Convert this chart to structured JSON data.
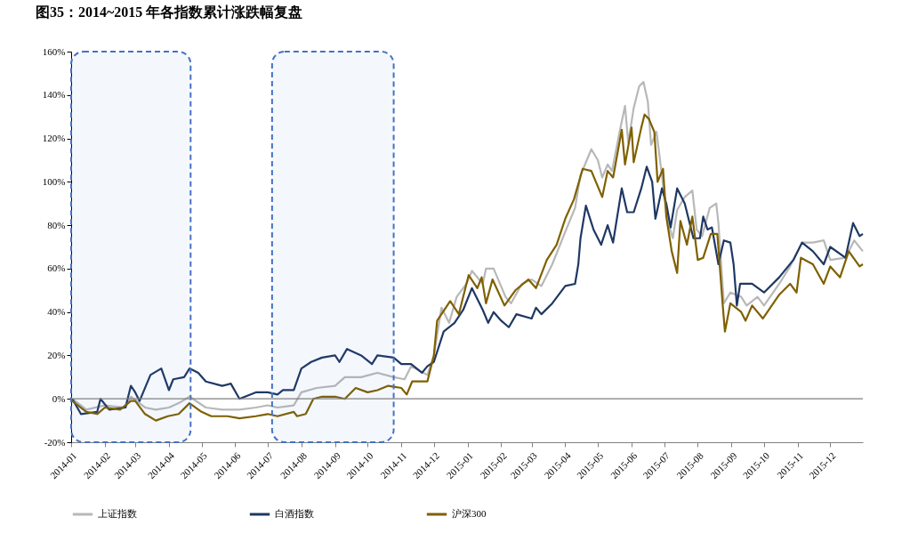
{
  "chart_data": {
    "type": "line",
    "title": "图35：2014~2015 年各指数累计涨跌幅复盘",
    "xlim": [
      "2014-01-01",
      "2015-12-31"
    ],
    "xticks": [
      "2014-01",
      "2014-02",
      "2014-03",
      "2014-04",
      "2014-05",
      "2014-06",
      "2014-07",
      "2014-08",
      "2014-09",
      "2014-10",
      "2014-11",
      "2014-12",
      "2015-01",
      "2015-02",
      "2015-03",
      "2015-04",
      "2015-05",
      "2015-06",
      "2015-07",
      "2015-08",
      "2015-09",
      "2015-10",
      "2015-11",
      "2015-12"
    ],
    "ylim": [
      -20,
      160
    ],
    "yticks": [
      {
        "value": -20,
        "label": "-20%"
      },
      {
        "value": 0,
        "label": "0%"
      },
      {
        "value": 20,
        "label": "20%"
      },
      {
        "value": 40,
        "label": "40%"
      },
      {
        "value": 60,
        "label": "60%"
      },
      {
        "value": 80,
        "label": "80%"
      },
      {
        "value": 100,
        "label": "100%"
      },
      {
        "value": 120,
        "label": "120%"
      },
      {
        "value": 140,
        "label": "140%"
      },
      {
        "value": 160,
        "label": "160%"
      }
    ],
    "grid": false,
    "legend": "bottom",
    "line_style": "solid",
    "ref_lines": [
      {
        "axis": "y",
        "value": 0,
        "color": "#808080"
      }
    ],
    "bands": [
      {
        "axis": "x",
        "from": "2014-01-01",
        "to": "2014-04-21",
        "color": "#4472c4"
      },
      {
        "axis": "x",
        "from": "2014-07-05",
        "to": "2014-10-25",
        "color": "#4472c4"
      }
    ],
    "series": [
      {
        "name": "上证指数",
        "color": "#b8b8b8",
        "x": [
          "2014-01-02",
          "2014-01-15",
          "2014-02-01",
          "2014-02-20",
          "2014-02-25",
          "2014-03-10",
          "2014-03-20",
          "2014-04-01",
          "2014-04-10",
          "2014-04-20",
          "2014-05-05",
          "2014-05-20",
          "2014-06-05",
          "2014-06-20",
          "2014-07-01",
          "2014-07-10",
          "2014-07-25",
          "2014-08-01",
          "2014-08-15",
          "2014-09-01",
          "2014-09-10",
          "2014-09-25",
          "2014-10-10",
          "2014-10-25",
          "2014-11-04",
          "2014-11-10",
          "2014-11-25",
          "2014-12-01",
          "2014-12-08",
          "2014-12-15",
          "2014-12-22",
          "2014-12-31",
          "2015-01-05",
          "2015-01-15",
          "2015-01-18",
          "2015-01-25",
          "2015-02-05",
          "2015-02-10",
          "2015-02-20",
          "2015-03-01",
          "2015-03-10",
          "2015-03-20",
          "2015-04-01",
          "2015-04-10",
          "2015-04-15",
          "2015-04-25",
          "2015-05-01",
          "2015-05-05",
          "2015-05-10",
          "2015-05-14",
          "2015-05-21",
          "2015-05-26",
          "2015-05-29",
          "2015-06-03",
          "2015-06-08",
          "2015-06-12",
          "2015-06-16",
          "2015-06-19",
          "2015-06-24",
          "2015-06-29",
          "2015-07-02",
          "2015-07-06",
          "2015-07-09",
          "2015-07-13",
          "2015-07-20",
          "2015-07-27",
          "2015-07-31",
          "2015-08-05",
          "2015-08-12",
          "2015-08-18",
          "2015-08-20",
          "2015-08-25",
          "2015-08-31",
          "2015-09-10",
          "2015-09-15",
          "2015-09-25",
          "2015-10-01",
          "2015-10-15",
          "2015-10-25",
          "2015-11-05",
          "2015-11-15",
          "2015-11-25",
          "2015-12-01",
          "2015-12-15",
          "2015-12-23",
          "2015-12-31"
        ],
        "values": [
          0,
          -5,
          -3,
          -4,
          1,
          -4,
          -5,
          -4,
          -2,
          1,
          -4,
          -5,
          -5,
          -4,
          -3,
          -4,
          -3,
          3,
          5,
          6,
          10,
          10,
          12,
          10,
          9,
          15,
          11,
          20,
          42,
          35,
          47,
          53,
          59,
          53,
          60,
          60,
          47,
          44,
          53,
          55,
          52,
          62,
          77,
          88,
          103,
          115,
          110,
          102,
          108,
          105,
          123,
          135,
          118,
          134,
          144,
          146,
          137,
          117,
          123,
          103,
          90,
          79,
          74,
          87,
          93,
          96,
          78,
          75,
          88,
          90,
          81,
          44,
          49,
          47,
          43,
          47,
          43,
          53,
          61,
          72,
          72,
          73,
          64,
          65,
          73,
          68
        ]
      },
      {
        "name": "白酒指数",
        "color": "#1f3864",
        "x": [
          "2014-01-02",
          "2014-01-10",
          "2014-01-25",
          "2014-01-28",
          "2014-02-05",
          "2014-02-20",
          "2014-02-25",
          "2014-03-01",
          "2014-03-05",
          "2014-03-15",
          "2014-03-25",
          "2014-04-01",
          "2014-04-05",
          "2014-04-15",
          "2014-04-20",
          "2014-04-28",
          "2014-05-05",
          "2014-05-20",
          "2014-05-28",
          "2014-06-05",
          "2014-06-20",
          "2014-07-01",
          "2014-07-10",
          "2014-07-15",
          "2014-07-25",
          "2014-08-01",
          "2014-08-10",
          "2014-08-20",
          "2014-09-01",
          "2014-09-05",
          "2014-09-12",
          "2014-09-25",
          "2014-10-05",
          "2014-10-10",
          "2014-10-25",
          "2014-11-01",
          "2014-11-10",
          "2014-11-20",
          "2014-11-25",
          "2014-12-01",
          "2014-12-10",
          "2014-12-20",
          "2014-12-28",
          "2015-01-05",
          "2015-01-15",
          "2015-01-20",
          "2015-01-25",
          "2015-02-01",
          "2015-02-08",
          "2015-02-15",
          "2015-03-01",
          "2015-03-05",
          "2015-03-10",
          "2015-03-20",
          "2015-04-01",
          "2015-04-10",
          "2015-04-13",
          "2015-04-15",
          "2015-04-20",
          "2015-04-27",
          "2015-05-04",
          "2015-05-10",
          "2015-05-15",
          "2015-05-23",
          "2015-05-28",
          "2015-06-03",
          "2015-06-10",
          "2015-06-15",
          "2015-06-20",
          "2015-06-23",
          "2015-06-29",
          "2015-07-03",
          "2015-07-07",
          "2015-07-13",
          "2015-07-20",
          "2015-07-28",
          "2015-08-03",
          "2015-08-06",
          "2015-08-10",
          "2015-08-14",
          "2015-08-20",
          "2015-08-25",
          "2015-08-31",
          "2015-09-03",
          "2015-09-06",
          "2015-09-09",
          "2015-09-20",
          "2015-10-01",
          "2015-10-15",
          "2015-10-28",
          "2015-11-05",
          "2015-11-15",
          "2015-11-25",
          "2015-12-01",
          "2015-12-15",
          "2015-12-22",
          "2015-12-28",
          "2015-12-31"
        ],
        "values": [
          0,
          -7,
          -6,
          0,
          -5,
          -4,
          6,
          3,
          -1,
          11,
          14,
          4,
          9,
          10,
          14,
          12,
          8,
          6,
          7,
          0,
          3,
          3,
          2,
          4,
          4,
          14,
          17,
          19,
          20,
          17,
          23,
          20,
          16,
          20,
          19,
          16,
          16,
          12,
          15,
          17,
          31,
          35,
          41,
          51,
          41,
          35,
          40,
          36,
          33,
          39,
          37,
          42,
          39,
          44,
          52,
          53,
          62,
          74,
          89,
          78,
          71,
          80,
          72,
          97,
          86,
          86,
          97,
          107,
          100,
          83,
          97,
          90,
          79,
          97,
          90,
          74,
          74,
          84,
          78,
          79,
          62,
          73,
          72,
          62,
          43,
          53,
          53,
          49,
          56,
          64,
          72,
          68,
          62,
          70,
          65,
          81,
          75,
          76
        ]
      },
      {
        "name": "沪深300",
        "color": "#7f6000",
        "x": [
          "2014-01-02",
          "2014-01-15",
          "2014-01-25",
          "2014-02-01",
          "2014-02-15",
          "2014-02-25",
          "2014-03-01",
          "2014-03-10",
          "2014-03-20",
          "2014-03-31",
          "2014-04-10",
          "2014-04-20",
          "2014-05-01",
          "2014-05-10",
          "2014-05-25",
          "2014-06-05",
          "2014-06-20",
          "2014-07-01",
          "2014-07-10",
          "2014-07-25",
          "2014-07-28",
          "2014-08-05",
          "2014-08-12",
          "2014-08-20",
          "2014-09-01",
          "2014-09-10",
          "2014-09-20",
          "2014-10-01",
          "2014-10-10",
          "2014-10-20",
          "2014-11-01",
          "2014-11-06",
          "2014-11-11",
          "2014-11-25",
          "2014-12-01",
          "2014-12-04",
          "2014-12-16",
          "2014-12-24",
          "2014-12-28",
          "2015-01-02",
          "2015-01-10",
          "2015-01-14",
          "2015-01-18",
          "2015-01-24",
          "2015-02-04",
          "2015-02-14",
          "2015-02-26",
          "2015-03-05",
          "2015-03-15",
          "2015-03-24",
          "2015-04-01",
          "2015-04-09",
          "2015-04-17",
          "2015-04-25",
          "2015-05-05",
          "2015-05-10",
          "2015-05-15",
          "2015-05-23",
          "2015-05-26",
          "2015-06-01",
          "2015-06-03",
          "2015-06-10",
          "2015-06-13",
          "2015-06-17",
          "2015-06-22",
          "2015-06-25",
          "2015-06-30",
          "2015-07-03",
          "2015-07-08",
          "2015-07-13",
          "2015-07-16",
          "2015-07-22",
          "2015-07-27",
          "2015-08-01",
          "2015-08-06",
          "2015-08-13",
          "2015-08-19",
          "2015-08-24",
          "2015-08-26",
          "2015-08-31",
          "2015-09-10",
          "2015-09-14",
          "2015-09-20",
          "2015-09-30",
          "2015-10-15",
          "2015-10-25",
          "2015-10-31",
          "2015-11-04",
          "2015-11-15",
          "2015-11-25",
          "2015-12-01",
          "2015-12-10",
          "2015-12-18",
          "2015-12-28",
          "2015-12-31"
        ],
        "values": [
          -1,
          -6,
          -7,
          -4,
          -5,
          -1,
          -1,
          -7,
          -10,
          -8,
          -7,
          -2,
          -6,
          -8,
          -8,
          -9,
          -8,
          -7,
          -8,
          -6,
          -8,
          -7,
          0,
          1,
          1,
          0,
          5,
          3,
          4,
          6,
          5,
          2,
          8,
          8,
          20,
          36,
          45,
          39,
          47,
          57,
          51,
          56,
          44,
          55,
          43,
          50,
          55,
          51,
          64,
          71,
          83,
          92,
          106,
          105,
          93,
          105,
          102,
          124,
          108,
          125,
          109,
          125,
          131,
          129,
          123,
          100,
          106,
          84,
          68,
          58,
          82,
          71,
          84,
          64,
          65,
          76,
          76,
          43,
          31,
          44,
          40,
          36,
          43,
          37,
          48,
          53,
          49,
          65,
          62,
          53,
          61,
          56,
          68,
          61,
          62
        ]
      }
    ]
  }
}
